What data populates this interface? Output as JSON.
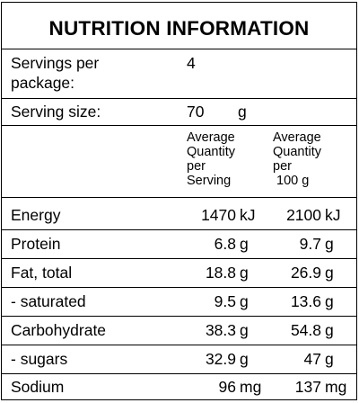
{
  "title": "NUTRITION INFORMATION",
  "servings": {
    "label_line1": "Servings per",
    "label_line2": "package:",
    "value": "4"
  },
  "serving_size": {
    "label": "Serving size:",
    "value": "70",
    "unit": "g"
  },
  "column_headers": {
    "per_serving": [
      "Average",
      "Quantity",
      "per",
      "Serving"
    ],
    "per_100g": [
      "Average",
      "Quantity",
      "per",
      "100 g"
    ]
  },
  "rows": [
    {
      "name": "Energy",
      "serving_value": "1470",
      "serving_unit": "kJ",
      "per100_value": "2100",
      "per100_unit": "kJ"
    },
    {
      "name": "Protein",
      "serving_value": "6.8",
      "serving_unit": "g",
      "per100_value": "9.7",
      "per100_unit": "g"
    },
    {
      "name": "Fat, total",
      "serving_value": "18.8",
      "serving_unit": "g",
      "per100_value": "26.9",
      "per100_unit": "g"
    },
    {
      "name": "- saturated",
      "serving_value": "9.5",
      "serving_unit": "g",
      "per100_value": "13.6",
      "per100_unit": "g"
    },
    {
      "name": "Carbohydrate",
      "serving_value": "38.3",
      "serving_unit": "g",
      "per100_value": "54.8",
      "per100_unit": "g"
    },
    {
      "name": "- sugars",
      "serving_value": "32.9",
      "serving_unit": "g",
      "per100_value": "47",
      "per100_unit": "g"
    },
    {
      "name": "Sodium",
      "serving_value": "96",
      "serving_unit": "mg",
      "per100_value": "137",
      "per100_unit": "mg"
    }
  ]
}
